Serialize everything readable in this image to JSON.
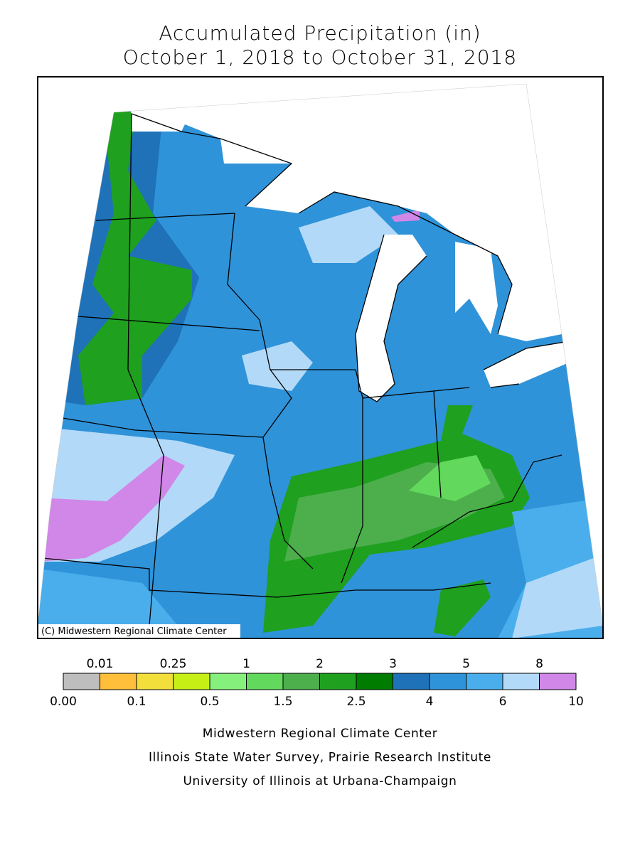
{
  "header": {
    "title": "Accumulated Precipitation (in)",
    "subtitle": "October 1, 2018 to October 31, 2018"
  },
  "map": {
    "credit": "(C) Midwestern Regional Climate Center"
  },
  "legend": {
    "edges": [
      "0.00",
      "0.01",
      "0.1",
      "0.25",
      "0.5",
      "1",
      "1.5",
      "2",
      "2.5",
      "3",
      "4",
      "5",
      "6",
      "8",
      "10"
    ],
    "colors": [
      "#bebebe",
      "#ffbf3a",
      "#f2df3c",
      "#c6ef16",
      "#86f07c",
      "#62d95c",
      "#4caf4c",
      "#1fa01f",
      "#007d00",
      "#1f72b8",
      "#2f93d9",
      "#4aaeec",
      "#b3d9f8",
      "#d087e8"
    ]
  },
  "footer": {
    "lines": [
      "Midwestern Regional Climate Center",
      "Illinois State Water Survey, Prairie Research Institute",
      "University of Illinois at Urbana-Champaign"
    ]
  }
}
